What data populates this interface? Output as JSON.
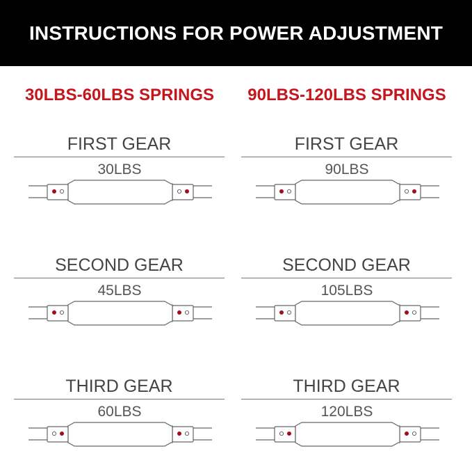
{
  "header": {
    "title": "INSTRUCTIONS FOR POWER ADJUSTMENT"
  },
  "columns": [
    {
      "title": "30LBS-60LBS SPRINGS",
      "gears": [
        {
          "name": "FIRST GEAR",
          "value": "30LBS",
          "left_red": "outer",
          "right_red": "outer"
        },
        {
          "name": "SECOND GEAR",
          "value": "45LBS",
          "left_red": "outer",
          "right_red": "inner"
        },
        {
          "name": "THIRD GEAR",
          "value": "60LBS",
          "left_red": "inner",
          "right_red": "inner"
        }
      ]
    },
    {
      "title": "90LBS-120LBS SPRINGS",
      "gears": [
        {
          "name": "FIRST GEAR",
          "value": "90LBS",
          "left_red": "outer",
          "right_red": "outer"
        },
        {
          "name": "SECOND GEAR",
          "value": "105LBS",
          "left_red": "outer",
          "right_red": "inner"
        },
        {
          "name": "THIRD GEAR",
          "value": "120LBS",
          "left_red": "inner",
          "right_red": "inner"
        }
      ]
    }
  ],
  "colors": {
    "accent": "#c4161c",
    "dot_red": "#a30d1a",
    "header_bg": "#000000"
  }
}
